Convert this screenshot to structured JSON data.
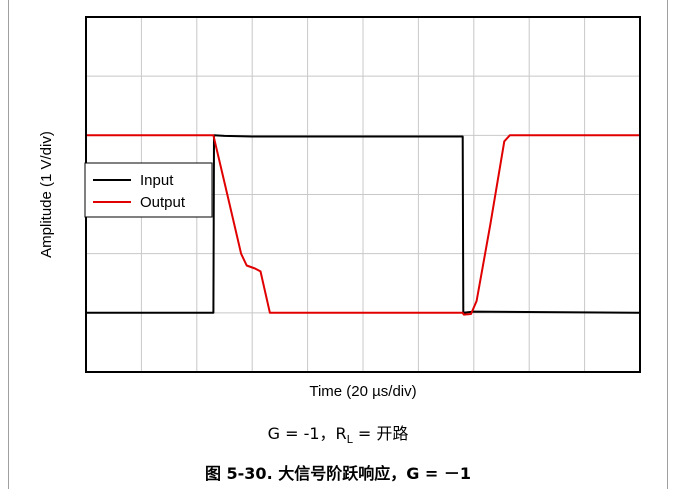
{
  "chart_data": {
    "type": "line",
    "title": "",
    "xlabel": "Time (20 µs/div)",
    "ylabel": "Amplitude (1 V/div)",
    "x_divisions": 10,
    "y_divisions": 6,
    "grid": true,
    "legend_position": "left-middle",
    "x_unit_per_div": "20 µs",
    "y_unit_per_div": "1 V",
    "series": [
      {
        "name": "Input",
        "color": "#000000",
        "points": [
          [
            0,
            1.0
          ],
          [
            2.3,
            1.0
          ],
          [
            2.31,
            4.0
          ],
          [
            2.5,
            3.99
          ],
          [
            3.0,
            3.98
          ],
          [
            6.8,
            3.98
          ],
          [
            6.81,
            1.0
          ],
          [
            7.0,
            1.02
          ],
          [
            10,
            1.0
          ]
        ]
      },
      {
        "name": "Output",
        "color": "#e00000",
        "points": [
          [
            0,
            4.0
          ],
          [
            2.3,
            4.0
          ],
          [
            2.55,
            3.0
          ],
          [
            2.8,
            2.0
          ],
          [
            2.9,
            1.8
          ],
          [
            3.05,
            1.75
          ],
          [
            3.15,
            1.7
          ],
          [
            3.32,
            1.0
          ],
          [
            6.8,
            1.0
          ],
          [
            6.82,
            0.97
          ],
          [
            6.95,
            0.98
          ],
          [
            7.05,
            1.2
          ],
          [
            7.3,
            2.5
          ],
          [
            7.55,
            3.9
          ],
          [
            7.65,
            4.0
          ],
          [
            10,
            4.0
          ]
        ]
      }
    ]
  },
  "caption": {
    "condition_prefix": "G = -1，R",
    "condition_sub": "L",
    "condition_suffix": " = 开路",
    "figure_title": "图 5-30. 大信号阶跃响应，G = －1"
  }
}
